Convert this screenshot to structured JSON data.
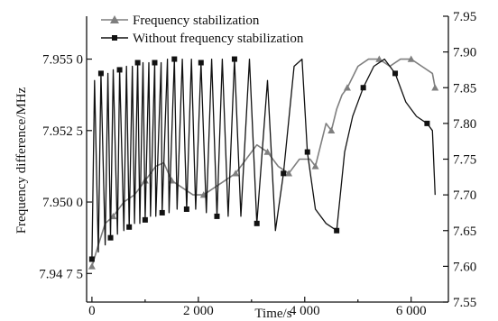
{
  "chart_data": {
    "type": "line",
    "xlabel": "Time/s",
    "ylabel": "Frequency difference/MHz",
    "xlim": [
      -100,
      6700
    ],
    "ylim": [
      7.9465,
      7.9565
    ],
    "y2lim": [
      7.55,
      7.95
    ],
    "x_ticks": [
      0,
      2000,
      4000,
      6000
    ],
    "x_tick_labels": [
      "0",
      "2 000",
      "4 000",
      "6 000"
    ],
    "y_ticks": [
      7.9475,
      7.95,
      7.9525,
      7.955
    ],
    "y_tick_labels": [
      "7.94 7 5",
      "7.950 0",
      "7.952 5",
      "7.955 0"
    ],
    "y2_ticks": [
      7.55,
      7.6,
      7.65,
      7.7,
      7.75,
      7.8,
      7.85,
      7.9,
      7.95
    ],
    "y2_tick_labels": [
      "7.55",
      "7.60",
      "7.65",
      "7.70",
      "7.75",
      "7.80",
      "7.85",
      "7.90",
      "7.95"
    ],
    "legend_position": "top",
    "series": [
      {
        "name": "Frequency stabilization",
        "axis": "right",
        "color": "#7f7f7f",
        "marker": "triangle",
        "x": [
          0,
          120,
          250,
          400,
          600,
          800,
          1000,
          1200,
          1350,
          1500,
          1700,
          1900,
          2100,
          2300,
          2500,
          2700,
          2900,
          3100,
          3300,
          3400,
          3500,
          3700,
          3900,
          4100,
          4200,
          4300,
          4400,
          4500,
          4600,
          4700,
          4800,
          5000,
          5200,
          5400,
          5600,
          5800,
          6000,
          6200,
          6400,
          6450
        ],
        "y": [
          7.6,
          7.63,
          7.66,
          7.67,
          7.69,
          7.7,
          7.72,
          7.74,
          7.745,
          7.72,
          7.71,
          7.7,
          7.7,
          7.71,
          7.72,
          7.73,
          7.75,
          7.77,
          7.76,
          7.75,
          7.74,
          7.73,
          7.75,
          7.75,
          7.74,
          7.77,
          7.8,
          7.79,
          7.82,
          7.84,
          7.85,
          7.88,
          7.89,
          7.89,
          7.88,
          7.89,
          7.89,
          7.88,
          7.87,
          7.85
        ]
      },
      {
        "name": "Without frequency stabilization",
        "axis": "right",
        "color": "#111111",
        "marker": "square",
        "x": [
          0,
          50,
          120,
          170,
          250,
          300,
          350,
          400,
          480,
          520,
          600,
          650,
          700,
          760,
          800,
          860,
          900,
          960,
          1000,
          1070,
          1100,
          1180,
          1200,
          1300,
          1320,
          1420,
          1450,
          1550,
          1600,
          1700,
          1780,
          1870,
          1950,
          2050,
          2150,
          2250,
          2350,
          2450,
          2560,
          2680,
          2800,
          2960,
          3100,
          3300,
          3450,
          3600,
          3800,
          3950,
          4050,
          4200,
          4400,
          4600,
          4750,
          4900,
          5100,
          5300,
          5500,
          5700,
          5900,
          6100,
          6300,
          6400,
          6450
        ],
        "y": [
          7.61,
          7.86,
          7.62,
          7.87,
          7.63,
          7.87,
          7.64,
          7.875,
          7.645,
          7.875,
          7.65,
          7.88,
          7.655,
          7.88,
          7.66,
          7.885,
          7.66,
          7.885,
          7.665,
          7.885,
          7.67,
          7.885,
          7.67,
          7.885,
          7.675,
          7.89,
          7.675,
          7.89,
          7.68,
          7.89,
          7.68,
          7.89,
          7.68,
          7.885,
          7.675,
          7.89,
          7.67,
          7.89,
          7.67,
          7.89,
          7.67,
          7.89,
          7.66,
          7.86,
          7.65,
          7.73,
          7.88,
          7.89,
          7.76,
          7.68,
          7.66,
          7.65,
          7.76,
          7.81,
          7.85,
          7.88,
          7.89,
          7.87,
          7.83,
          7.81,
          7.8,
          7.79,
          7.7
        ]
      }
    ]
  }
}
